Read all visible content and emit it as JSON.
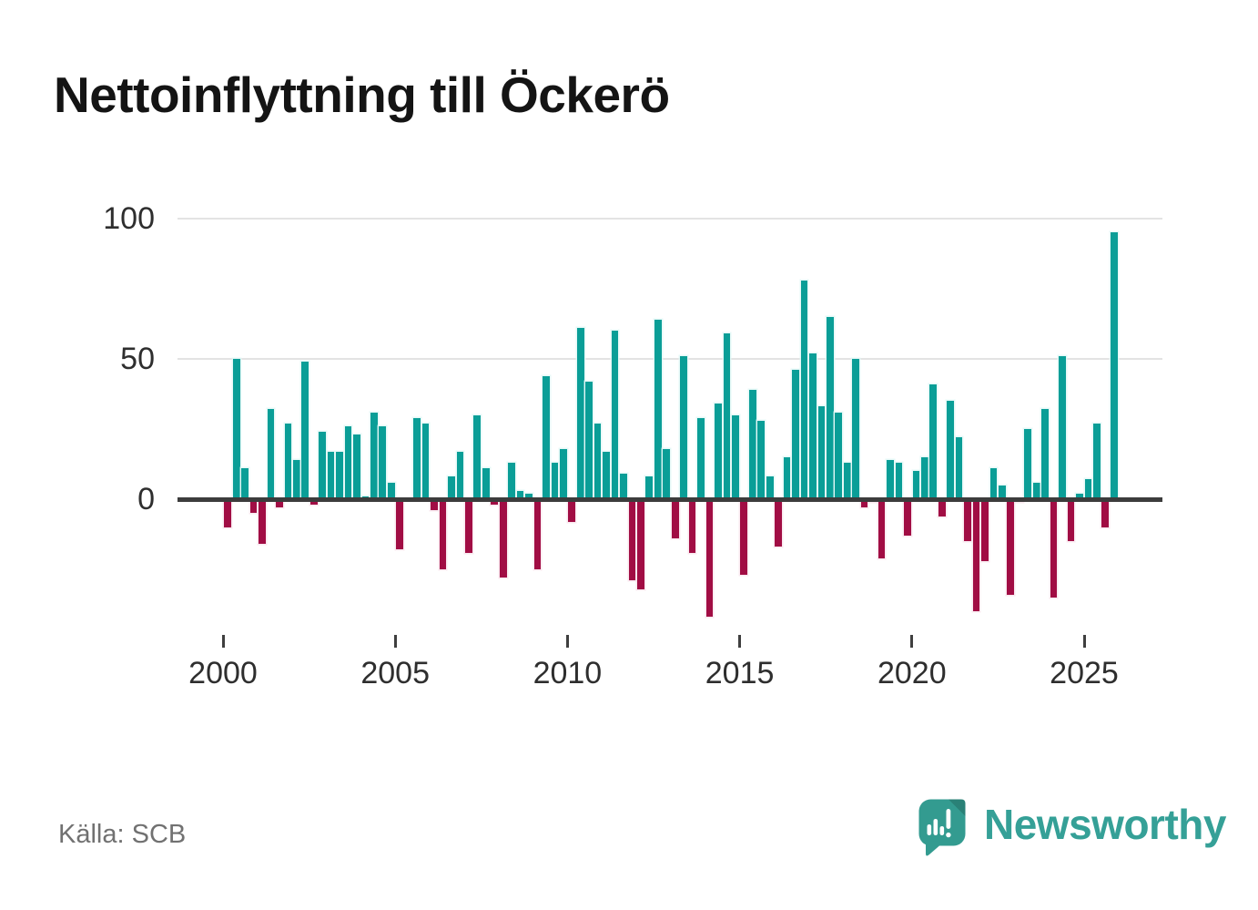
{
  "title": "Nettoinflyttning till Öckerö",
  "source": "Källa: SCB",
  "brand": {
    "name": "Newsworthy",
    "logo_icon": "speech-bubble-bar-chart-icon",
    "text_color": "#35a097",
    "bubble_color": "#339b90",
    "bubble_fold_color": "#2a8177"
  },
  "colors": {
    "positive": "#0a9e97",
    "negative": "#a10d44",
    "axis": "#3c3c3c",
    "gridline": "#e3e3e3",
    "tick_label": "#2e2e2e",
    "source_text": "#717171"
  },
  "y_axis": {
    "tick_values": [
      100,
      50,
      0
    ]
  },
  "x_axis": {
    "tick_labels": [
      "2000",
      "2005",
      "2010",
      "2015",
      "2020",
      "2025"
    ]
  },
  "chart_data": {
    "type": "bar",
    "title": "Nettoinflyttning till Öckerö",
    "xlabel": "",
    "ylabel": "",
    "frequency": "quarterly",
    "x_start": "2000-Q1",
    "x_end": "2025-Q4",
    "ylim": [
      -45,
      100
    ],
    "y_gridlines": [
      50,
      100
    ],
    "grid": "horizontal-only",
    "legend": "none",
    "positive_color": "#0a9e97",
    "negative_color": "#a10d44",
    "series": [
      {
        "name": "Nettoinflyttning",
        "values_by_year": [
          {
            "year": 2000,
            "q": [
              -10,
              50,
              11,
              -5
            ]
          },
          {
            "year": 2001,
            "q": [
              -16,
              32,
              -3,
              27
            ]
          },
          {
            "year": 2002,
            "q": [
              14,
              49,
              -2,
              24
            ]
          },
          {
            "year": 2003,
            "q": [
              17,
              17,
              26,
              23
            ]
          },
          {
            "year": 2004,
            "q": [
              1,
              31,
              26,
              6
            ]
          },
          {
            "year": 2005,
            "q": [
              -18,
              0,
              29,
              27
            ]
          },
          {
            "year": 2006,
            "q": [
              -4,
              -25,
              8,
              17
            ]
          },
          {
            "year": 2007,
            "q": [
              -19,
              30,
              11,
              -2
            ]
          },
          {
            "year": 2008,
            "q": [
              -28,
              13,
              3,
              2
            ]
          },
          {
            "year": 2009,
            "q": [
              -25,
              44,
              13,
              18
            ]
          },
          {
            "year": 2010,
            "q": [
              -8,
              61,
              42,
              27
            ]
          },
          {
            "year": 2011,
            "q": [
              17,
              60,
              9,
              -29
            ]
          },
          {
            "year": 2012,
            "q": [
              -32,
              8,
              64,
              18
            ]
          },
          {
            "year": 2013,
            "q": [
              -14,
              51,
              -19,
              29
            ]
          },
          {
            "year": 2014,
            "q": [
              -42,
              34,
              59,
              30
            ]
          },
          {
            "year": 2015,
            "q": [
              -27,
              39,
              28,
              8
            ]
          },
          {
            "year": 2016,
            "q": [
              -17,
              15,
              46,
              78
            ]
          },
          {
            "year": 2017,
            "q": [
              52,
              33,
              65,
              31
            ]
          },
          {
            "year": 2018,
            "q": [
              13,
              50,
              -3,
              -1
            ]
          },
          {
            "year": 2019,
            "q": [
              -21,
              14,
              13,
              -13
            ]
          },
          {
            "year": 2020,
            "q": [
              10,
              15,
              41,
              -6
            ]
          },
          {
            "year": 2021,
            "q": [
              35,
              22,
              -15,
              -40
            ]
          },
          {
            "year": 2022,
            "q": [
              -22,
              11,
              5,
              -34
            ]
          },
          {
            "year": 2023,
            "q": [
              -1,
              25,
              6,
              32
            ]
          },
          {
            "year": 2024,
            "q": [
              -35,
              51,
              -15,
              2
            ]
          },
          {
            "year": 2025,
            "q": [
              7,
              27,
              -10,
              95
            ]
          }
        ]
      }
    ]
  }
}
